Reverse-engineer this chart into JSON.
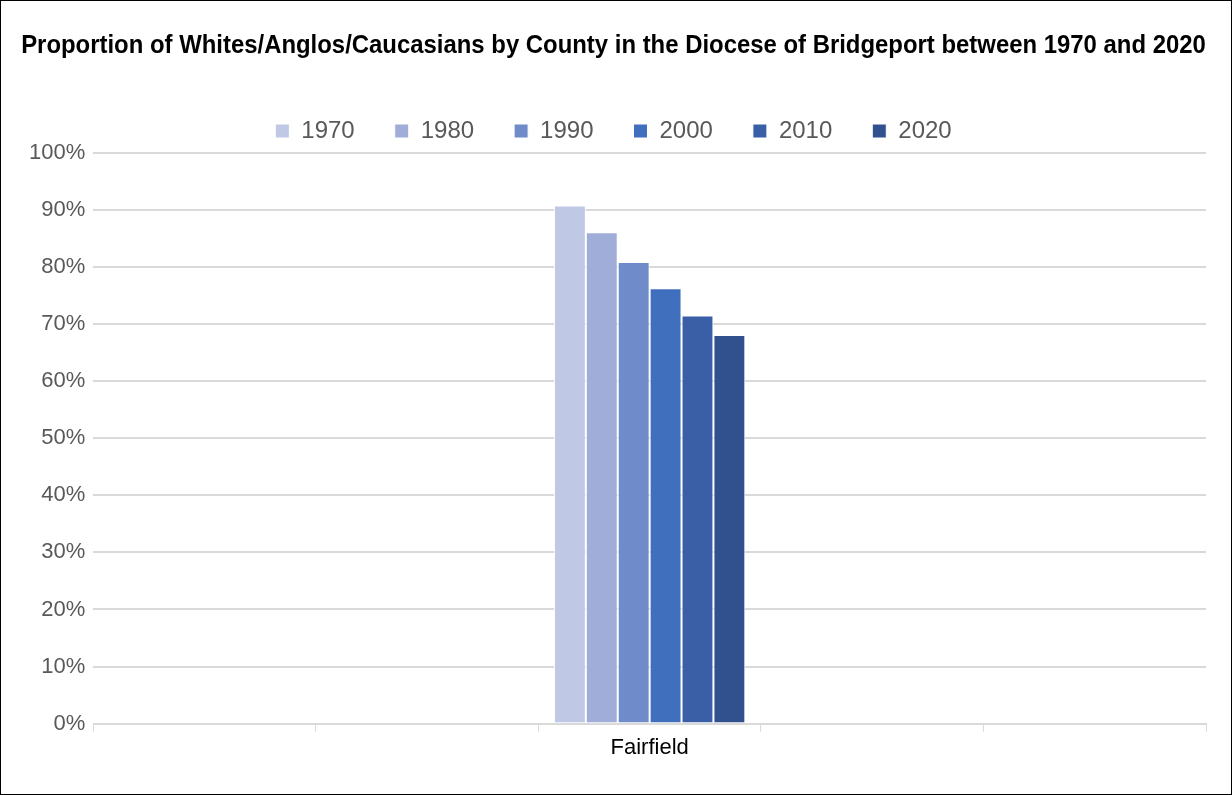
{
  "chart_data": {
    "type": "bar",
    "title": "Proportion of Whites/Anglos/Caucasians by County in the Diocese of Bridgeport between 1970 and 2020",
    "categories": [
      null,
      null,
      "Fairfield",
      null,
      null
    ],
    "series": [
      {
        "name": "1970",
        "color": "#bfc8e4",
        "values": [
          null,
          null,
          90.8,
          null,
          null
        ]
      },
      {
        "name": "1980",
        "color": "#9fadd8",
        "values": [
          null,
          null,
          86.1,
          null,
          null
        ]
      },
      {
        "name": "1990",
        "color": "#6f8bca",
        "values": [
          null,
          null,
          80.9,
          null,
          null
        ]
      },
      {
        "name": "2000",
        "color": "#3f6fbd",
        "values": [
          null,
          null,
          76.3,
          null,
          null
        ]
      },
      {
        "name": "2010",
        "color": "#3a5fa6",
        "values": [
          null,
          null,
          71.5,
          null,
          null
        ]
      },
      {
        "name": "2020",
        "color": "#30518d",
        "values": [
          null,
          null,
          68.1,
          null,
          null
        ]
      }
    ],
    "ylim": [
      0,
      100
    ],
    "yticks": [
      {
        "value": 0,
        "label": "0%"
      },
      {
        "value": 10,
        "label": "10%"
      },
      {
        "value": 20,
        "label": "20%"
      },
      {
        "value": 30,
        "label": "30%"
      },
      {
        "value": 40,
        "label": "40%"
      },
      {
        "value": 50,
        "label": "50%"
      },
      {
        "value": 60,
        "label": "60%"
      },
      {
        "value": 70,
        "label": "70%"
      },
      {
        "value": 80,
        "label": "80%"
      },
      {
        "value": 90,
        "label": "90%"
      },
      {
        "value": 100,
        "label": "100%"
      }
    ],
    "grid": "y",
    "legend": "top"
  }
}
